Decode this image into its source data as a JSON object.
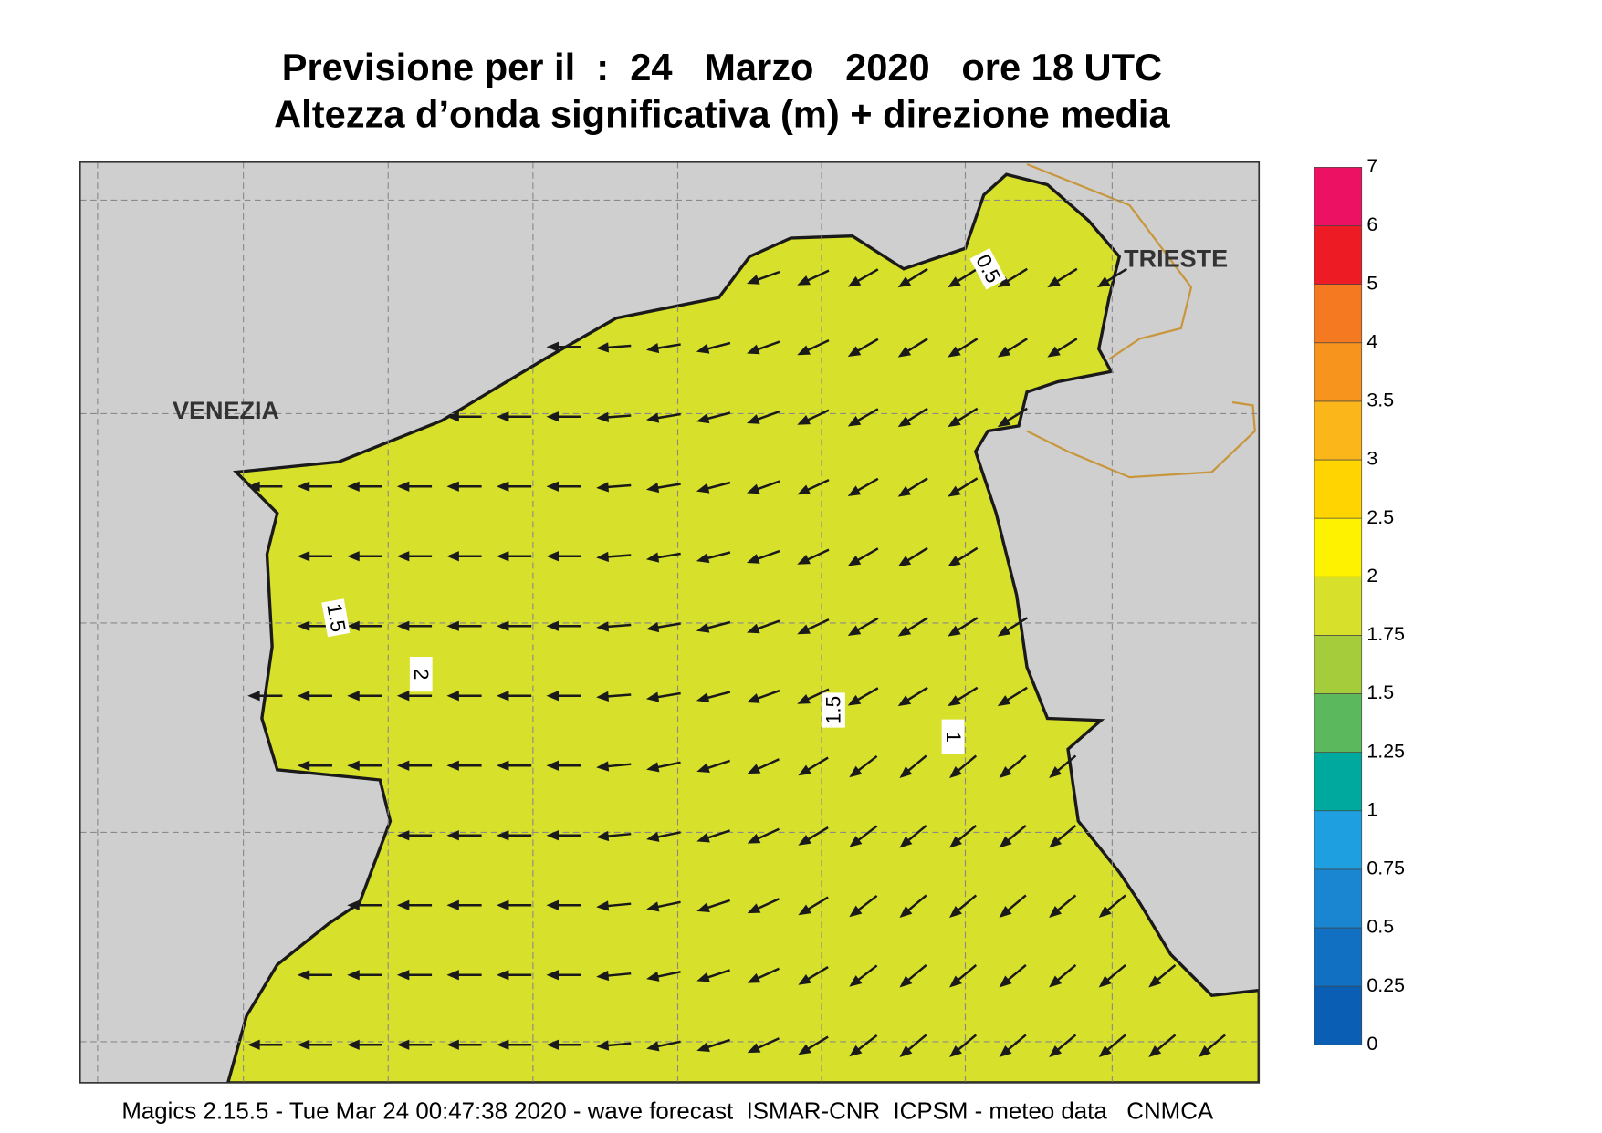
{
  "title": [
    "Previsione per il  :  24   Marzo   2020   ore 18 UTC",
    "Altezza d’onda significativa (m) + direzione media"
  ],
  "map": {
    "labels": [
      "VENEZIA",
      "TRIESTE"
    ],
    "contour_labels": [
      0.5,
      1,
      1.5,
      2,
      1.5
    ]
  },
  "colorbar": {
    "levels": [
      0,
      0.25,
      0.5,
      0.75,
      1,
      1.25,
      1.5,
      1.75,
      2,
      2.5,
      3,
      3.5,
      4,
      5,
      6,
      7
    ],
    "colors": [
      "#0a5fb4",
      "#1170c2",
      "#1a86d2",
      "#1ea0e0",
      "#00a99d",
      "#5cb85c",
      "#a5cc3a",
      "#d7e02a",
      "#fff200",
      "#ffd400",
      "#fbb61a",
      "#f7941d",
      "#f47920",
      "#ed1c24",
      "#ec1163"
    ]
  },
  "footer": "Magics 2.15.5 - Tue Mar 24 00:47:38 2020 - wave forecast  ISMAR-CNR  ICPSM - meteo data   CNMCA"
}
